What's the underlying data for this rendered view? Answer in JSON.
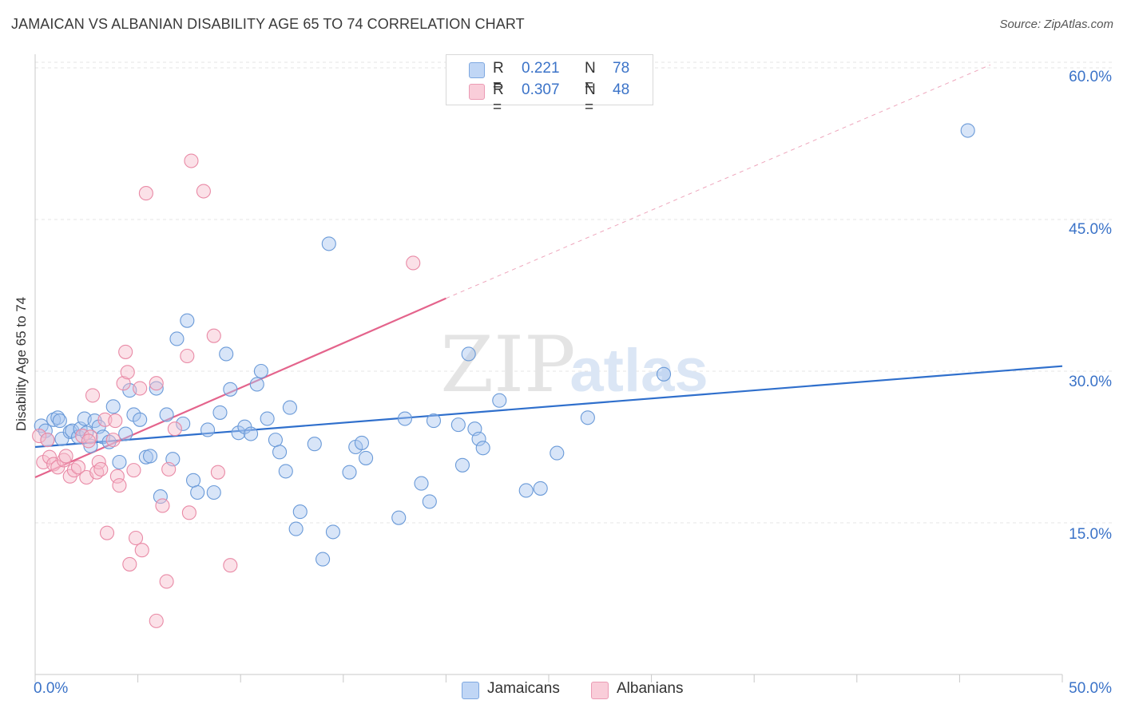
{
  "header": {
    "title": "JAMAICAN VS ALBANIAN DISABILITY AGE 65 TO 74 CORRELATION CHART",
    "source": "Source: ZipAtlas.com"
  },
  "legend": {
    "r_label": "R =",
    "n_label": "N =",
    "jamaicans": {
      "r": "0.221",
      "n": "78"
    },
    "albanians": {
      "r": "0.307",
      "n": "48"
    }
  },
  "watermark": {
    "zip": "ZIP",
    "atlas": "atlas"
  },
  "colors": {
    "jamaican_fill": "#a9c6f0",
    "jamaican_stroke": "#6a9ad8",
    "jamaican_line": "#2f6fcc",
    "albanian_fill": "#f6bccd",
    "albanian_stroke": "#e98aa6",
    "albanian_line": "#e4648c",
    "tick_text": "#3b73c8",
    "grid": "#e4e4e4"
  },
  "chart_data": {
    "type": "scatter",
    "title": "JAMAICAN VS ALBANIAN DISABILITY AGE 65 TO 74 CORRELATION CHART",
    "xlabel": "",
    "ylabel": "Disability Age 65 to 74",
    "xlim": [
      0,
      50
    ],
    "ylim": [
      0,
      62
    ],
    "x_tick_labels": [
      "0.0%",
      "50.0%"
    ],
    "y_ticks": [
      15,
      30,
      45,
      60
    ],
    "y_tick_labels": [
      "15.0%",
      "30.0%",
      "45.0%",
      "60.0%"
    ],
    "grid": "horizontal dashed",
    "legend_position": "top-center",
    "series": [
      {
        "name": "Jamaicans",
        "r": 0.221,
        "n": 78,
        "trend": {
          "x": [
            0,
            50
          ],
          "y": [
            22.5,
            30.5
          ]
        },
        "points": [
          [
            0.3,
            24.6
          ],
          [
            0.5,
            24.1
          ],
          [
            0.6,
            23.2
          ],
          [
            0.9,
            25.2
          ],
          [
            1.1,
            25.4
          ],
          [
            1.2,
            25.1
          ],
          [
            1.3,
            23.3
          ],
          [
            1.7,
            24.0
          ],
          [
            1.8,
            24.1
          ],
          [
            2.1,
            23.5
          ],
          [
            2.2,
            24.3
          ],
          [
            2.4,
            25.3
          ],
          [
            2.5,
            23.9
          ],
          [
            2.7,
            22.6
          ],
          [
            2.9,
            25.1
          ],
          [
            3.1,
            24.5
          ],
          [
            3.3,
            23.5
          ],
          [
            3.6,
            23.0
          ],
          [
            3.8,
            26.5
          ],
          [
            4.1,
            21.0
          ],
          [
            4.4,
            23.8
          ],
          [
            4.6,
            28.1
          ],
          [
            4.8,
            25.7
          ],
          [
            5.1,
            25.2
          ],
          [
            5.4,
            21.5
          ],
          [
            5.6,
            21.6
          ],
          [
            5.9,
            28.3
          ],
          [
            6.1,
            17.6
          ],
          [
            6.4,
            25.7
          ],
          [
            6.7,
            21.3
          ],
          [
            6.9,
            33.2
          ],
          [
            7.2,
            24.8
          ],
          [
            7.4,
            35.0
          ],
          [
            7.7,
            19.2
          ],
          [
            7.9,
            18.0
          ],
          [
            8.4,
            24.2
          ],
          [
            8.7,
            18.0
          ],
          [
            9.0,
            25.9
          ],
          [
            9.3,
            31.7
          ],
          [
            9.5,
            28.2
          ],
          [
            9.9,
            23.9
          ],
          [
            10.2,
            24.5
          ],
          [
            10.5,
            23.8
          ],
          [
            10.8,
            28.7
          ],
          [
            11.0,
            30.0
          ],
          [
            11.3,
            25.3
          ],
          [
            11.7,
            23.2
          ],
          [
            11.9,
            22.0
          ],
          [
            12.2,
            20.1
          ],
          [
            12.4,
            26.4
          ],
          [
            12.7,
            14.4
          ],
          [
            12.9,
            16.1
          ],
          [
            13.6,
            22.8
          ],
          [
            14.0,
            11.4
          ],
          [
            14.3,
            42.6
          ],
          [
            14.5,
            14.1
          ],
          [
            15.3,
            20.0
          ],
          [
            15.6,
            22.5
          ],
          [
            15.9,
            22.9
          ],
          [
            16.1,
            21.4
          ],
          [
            17.7,
            15.5
          ],
          [
            18.0,
            25.3
          ],
          [
            18.8,
            18.9
          ],
          [
            19.2,
            17.1
          ],
          [
            19.4,
            25.1
          ],
          [
            20.6,
            24.7
          ],
          [
            20.8,
            20.7
          ],
          [
            21.1,
            31.7
          ],
          [
            21.4,
            24.3
          ],
          [
            21.6,
            23.3
          ],
          [
            21.8,
            22.4
          ],
          [
            22.6,
            27.1
          ],
          [
            23.9,
            18.2
          ],
          [
            24.6,
            18.4
          ],
          [
            25.4,
            21.9
          ],
          [
            26.9,
            25.4
          ],
          [
            30.6,
            29.7
          ],
          [
            45.4,
            53.8
          ]
        ]
      },
      {
        "name": "Albanians",
        "r": 0.307,
        "n": 48,
        "trend": {
          "x": [
            0,
            20
          ],
          "y": [
            19.5,
            37.2
          ]
        },
        "trend_extension": {
          "x": [
            20,
            46.5
          ],
          "y": [
            37.2,
            60.3
          ]
        },
        "points": [
          [
            0.2,
            23.6
          ],
          [
            0.4,
            21.0
          ],
          [
            0.6,
            23.2
          ],
          [
            0.7,
            21.5
          ],
          [
            0.9,
            20.8
          ],
          [
            1.1,
            20.5
          ],
          [
            1.4,
            21.2
          ],
          [
            1.5,
            21.6
          ],
          [
            1.7,
            19.6
          ],
          [
            1.9,
            20.2
          ],
          [
            2.1,
            20.5
          ],
          [
            2.3,
            23.6
          ],
          [
            2.5,
            19.5
          ],
          [
            2.7,
            23.5
          ],
          [
            2.8,
            27.6
          ],
          [
            3.0,
            20.0
          ],
          [
            3.1,
            21.0
          ],
          [
            3.2,
            20.3
          ],
          [
            3.4,
            25.2
          ],
          [
            3.5,
            14.0
          ],
          [
            3.8,
            23.2
          ],
          [
            3.9,
            25.1
          ],
          [
            4.0,
            19.6
          ],
          [
            4.1,
            18.7
          ],
          [
            4.3,
            28.8
          ],
          [
            4.4,
            31.9
          ],
          [
            4.5,
            29.9
          ],
          [
            4.6,
            10.9
          ],
          [
            4.8,
            20.2
          ],
          [
            4.9,
            13.5
          ],
          [
            5.1,
            28.3
          ],
          [
            5.2,
            12.3
          ],
          [
            5.4,
            47.6
          ],
          [
            5.9,
            5.3
          ],
          [
            5.9,
            28.8
          ],
          [
            6.2,
            16.7
          ],
          [
            6.4,
            9.2
          ],
          [
            6.5,
            20.3
          ],
          [
            6.8,
            24.3
          ],
          [
            7.4,
            31.5
          ],
          [
            7.5,
            16.0
          ],
          [
            7.6,
            50.8
          ],
          [
            8.2,
            47.8
          ],
          [
            8.7,
            33.5
          ],
          [
            8.9,
            20.0
          ],
          [
            9.5,
            10.8
          ],
          [
            18.4,
            40.7
          ],
          [
            2.6,
            23.1
          ]
        ]
      }
    ]
  }
}
